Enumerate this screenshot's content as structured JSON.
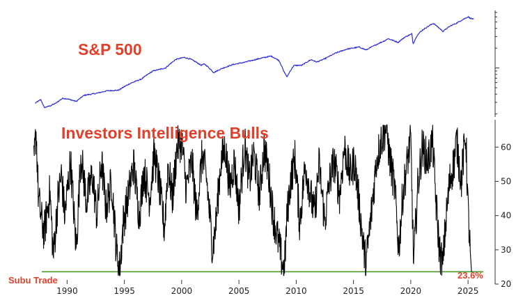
{
  "colors": {
    "sp500_line": "#2a2ad6",
    "bulls_line": "#000000",
    "threshold_line": "#4a9a2a",
    "annotation_red": "#e0402a",
    "axis": "#333333"
  },
  "chart_data": [
    {
      "type": "line",
      "title": "S&P 500",
      "yscale": "log",
      "yaxis_side": "right",
      "ytick_labels_visible": false,
      "grid": false,
      "series": [
        {
          "values_by_year": {
            "x": [
              1987.2,
              1987.7,
              1988.0,
              1988.5,
              1989.0,
              1989.6,
              1990.0,
              1990.8,
              1991.5,
              1992.5,
              1993.5,
              1994.5,
              1995.5,
              1996.5,
              1997.5,
              1998.6,
              1999.5,
              2000.2,
              2000.8,
              2001.7,
              2002.0,
              2002.8,
              2003.5,
              2004.5,
              2005.5,
              2006.5,
              2007.8,
              2008.5,
              2008.9,
              2009.2,
              2009.8,
              2010.5,
              2011.3,
              2011.8,
              2012.5,
              2013.5,
              2014.5,
              2015.5,
              2016.1,
              2016.8,
              2017.8,
              2018.0,
              2018.9,
              2019.5,
              2020.1,
              2020.2,
              2020.6,
              2021.0,
              2021.98,
              2022.3,
              2022.8,
              2023.5,
              2024.0,
              2024.5,
              2025.0,
              2025.2,
              2025.5
            ],
            "y": [
              290,
              330,
              250,
              265,
              290,
              345,
              340,
              310,
              385,
              410,
              450,
              460,
              580,
              680,
              900,
              1000,
              1350,
              1450,
              1360,
              1100,
              1150,
              850,
              980,
              1130,
              1220,
              1350,
              1520,
              1300,
              900,
              730,
              1090,
              1100,
              1340,
              1230,
              1380,
              1700,
              1950,
              2080,
              1880,
              2180,
              2630,
              2800,
              2450,
              2950,
              3300,
              2300,
              3200,
              3750,
              4780,
              4300,
              3600,
              4400,
              4800,
              5400,
              6000,
              5700,
              5500
            ]
          }
        }
      ]
    },
    {
      "type": "line",
      "title": "Investors Intelligence Bulls",
      "yaxis_side": "right",
      "ylim": [
        20,
        68
      ],
      "yticks": [
        "20",
        "30",
        "40",
        "50",
        "60"
      ],
      "xticks": [
        "1990",
        "1995",
        "2000",
        "2005",
        "2010",
        "2015",
        "2020",
        "2025"
      ],
      "grid": false,
      "series": [
        {
          "values_by_year": {
            "x": [
              1987.1,
              1987.3,
              1987.5,
              1987.8,
              1988.0,
              1988.5,
              1988.8,
              1989.2,
              1989.5,
              1989.8,
              1990.3,
              1990.8,
              1991.2,
              1991.7,
              1992.2,
              1992.6,
              1993.0,
              1993.4,
              1993.9,
              1994.3,
              1994.6,
              1994.9,
              1995.3,
              1995.8,
              1996.3,
              1996.7,
              1997.2,
              1997.6,
              1998.0,
              1998.5,
              1998.8,
              1999.2,
              1999.6,
              2000.0,
              2000.4,
              2000.9,
              2001.3,
              2001.8,
              2002.2,
              2002.7,
              2003.0,
              2003.4,
              2003.8,
              2004.2,
              2004.6,
              2005.0,
              2005.5,
              2005.9,
              2006.3,
              2006.8,
              2007.2,
              2007.6,
              2008.0,
              2008.4,
              2008.8,
              2008.95,
              2009.2,
              2009.5,
              2009.9,
              2010.3,
              2010.8,
              2011.2,
              2011.6,
              2012.0,
              2012.5,
              2012.9,
              2013.3,
              2013.8,
              2014.2,
              2014.7,
              2015.1,
              2015.6,
              2015.9,
              2016.1,
              2016.6,
              2017.0,
              2017.4,
              2017.9,
              2018.1,
              2018.6,
              2018.95,
              2019.3,
              2019.8,
              2020.0,
              2020.25,
              2020.6,
              2021.0,
              2021.5,
              2021.9,
              2022.2,
              2022.5,
              2022.8,
              2023.0,
              2023.4,
              2023.8,
              2024.0,
              2024.4,
              2024.8,
              2025.0,
              2025.15,
              2025.3
            ],
            "y": [
              55,
              65,
              45,
              38,
              35,
              47,
              28,
              45,
              52,
              40,
              56,
              30,
              58,
              44,
              52,
              40,
              56,
              42,
              50,
              30,
              24,
              38,
              45,
              55,
              40,
              53,
              45,
              58,
              50,
              36,
              55,
              45,
              60,
              62,
              48,
              56,
              40,
              58,
              50,
              30,
              38,
              55,
              60,
              48,
              56,
              42,
              61,
              50,
              58,
              46,
              60,
              52,
              40,
              33,
              26,
              23,
              40,
              50,
              57,
              38,
              55,
              47,
              40,
              55,
              38,
              50,
              56,
              46,
              60,
              52,
              56,
              40,
              30,
              26,
              42,
              56,
              62,
              66,
              58,
              48,
              30,
              46,
              58,
              62,
              26,
              48,
              60,
              56,
              62,
              44,
              30,
              25,
              36,
              50,
              56,
              62,
              50,
              64,
              42,
              32,
              23.6
            ]
          }
        }
      ]
    }
  ],
  "annotations": {
    "sp500_label": "S&P 500",
    "bulls_label": "Investors Intelligence Bulls",
    "watermark": "Subu Trade",
    "latest_value_label": "23.6%",
    "threshold_line_value": 23.6
  }
}
